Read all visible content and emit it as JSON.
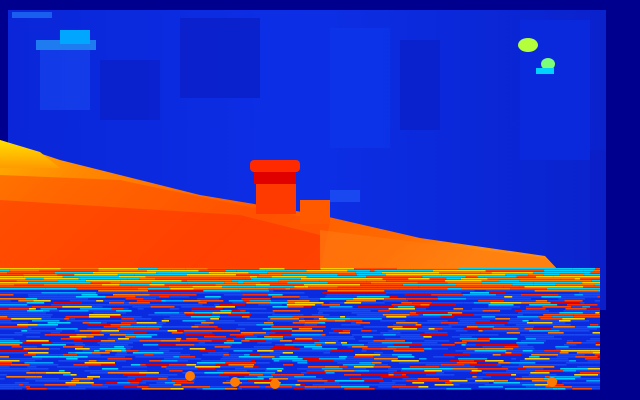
{
  "image": {
    "kind": "depth-map",
    "colormap": "jet",
    "palette": {
      "border": "#00008f",
      "far": "#0a2be0",
      "far_dark": "#0a1fc8",
      "far_light": "#1947f0",
      "mid": "#00d2ff",
      "near": "#ff7a00",
      "nearer": "#ff4a00",
      "nearest": "#e00000",
      "highlight": "#ffd000",
      "lime": "#b4ff3c"
    },
    "regions": [
      "far-background",
      "object-on-surface",
      "table-surface",
      "noisy-foreground",
      "left-window-highlight",
      "top-right-highlight"
    ]
  }
}
